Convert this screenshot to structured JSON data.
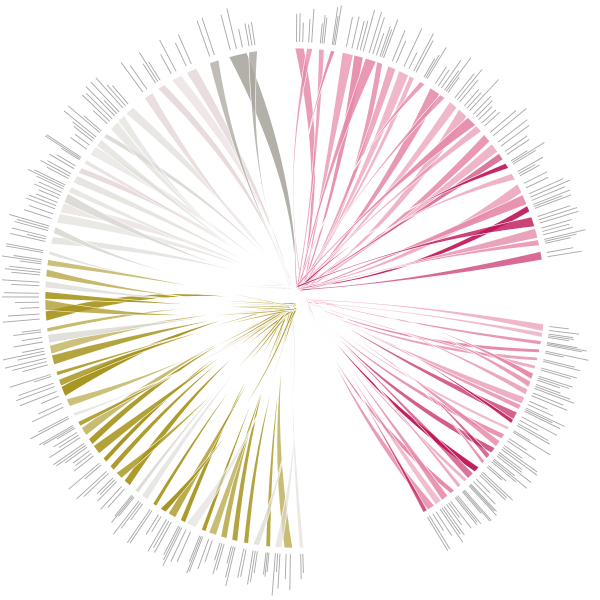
{
  "diagram": {
    "type": "radial-flow",
    "colors": [
      "#a9a69d",
      "#dddbd5",
      "#e7d9da",
      "#a8951f",
      "#e68aa9",
      "#c0185a"
    ]
  }
}
